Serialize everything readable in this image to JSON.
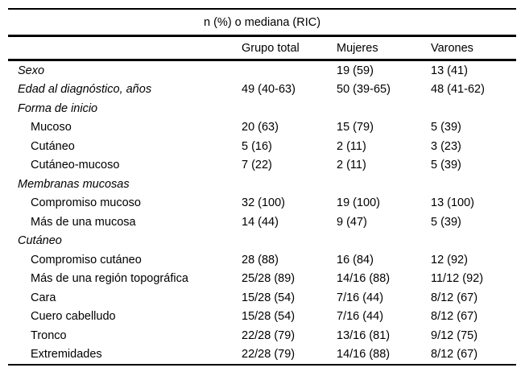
{
  "table": {
    "caption": "n (%) o mediana (RIC)",
    "columns": {
      "label": "",
      "total": "Grupo total",
      "mujeres": "Mujeres",
      "varones": "Varones"
    },
    "rows": [
      {
        "label": "Sexo",
        "type": "section",
        "values": [
          "",
          "19 (59)",
          "13 (41)"
        ]
      },
      {
        "label": "Edad al diagnóstico, años",
        "type": "section",
        "values": [
          "49 (40-63)",
          "50 (39-65)",
          "48 (41-62)"
        ]
      },
      {
        "label": "Forma de inicio",
        "type": "section",
        "values": [
          "",
          "",
          ""
        ]
      },
      {
        "label": "Mucoso",
        "type": "sub",
        "values": [
          "20 (63)",
          "15 (79)",
          "5 (39)"
        ]
      },
      {
        "label": "Cutáneo",
        "type": "sub",
        "values": [
          "5 (16)",
          "2 (11)",
          "3 (23)"
        ]
      },
      {
        "label": "Cutáneo-mucoso",
        "type": "sub",
        "values": [
          "7 (22)",
          "2 (11)",
          "5 (39)"
        ]
      },
      {
        "label": "Membranas mucosas",
        "type": "section",
        "values": [
          "",
          "",
          ""
        ]
      },
      {
        "label": "Compromiso mucoso",
        "type": "sub",
        "values": [
          "32 (100)",
          "19 (100)",
          "13 (100)"
        ]
      },
      {
        "label": "Más de una mucosa",
        "type": "sub",
        "values": [
          "14 (44)",
          "9 (47)",
          "5 (39)"
        ]
      },
      {
        "label": "Cutáneo",
        "type": "section",
        "values": [
          "",
          "",
          ""
        ]
      },
      {
        "label": "Compromiso cutáneo",
        "type": "sub",
        "values": [
          "28 (88)",
          "16 (84)",
          "12 (92)"
        ]
      },
      {
        "label": "Más de una región topográfica",
        "type": "sub",
        "values": [
          "25/28 (89)",
          "14/16 (88)",
          "11/12 (92)"
        ]
      },
      {
        "label": "Cara",
        "type": "sub",
        "values": [
          "15/28 (54)",
          "7/16 (44)",
          "8/12 (67)"
        ]
      },
      {
        "label": "Cuero cabelludo",
        "type": "sub",
        "values": [
          "15/28 (54)",
          "7/16 (44)",
          "8/12 (67)"
        ]
      },
      {
        "label": "Tronco",
        "type": "sub",
        "values": [
          "22/28 (79)",
          "13/16 (81)",
          "9/12 (75)"
        ]
      },
      {
        "label": "Extremidades",
        "type": "sub",
        "values": [
          "22/28 (79)",
          "14/16 (88)",
          "8/12 (67)"
        ]
      }
    ],
    "colors": {
      "text": "#000000",
      "rule": "#000000",
      "background": "#ffffff"
    }
  }
}
